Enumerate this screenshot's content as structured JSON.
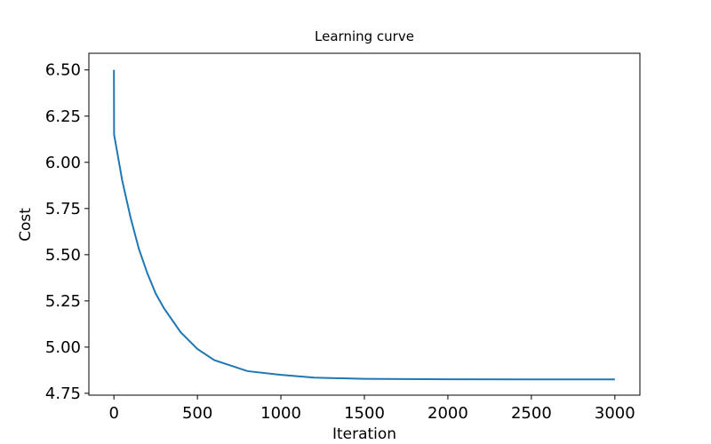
{
  "chart_data": {
    "type": "line",
    "title": "Learning curve",
    "x_label": "Iteration",
    "y_label": "Cost",
    "x": [
      0,
      1,
      50,
      100,
      150,
      200,
      250,
      300,
      400,
      500,
      600,
      700,
      800,
      1000,
      1200,
      1500,
      2000,
      2500,
      3000
    ],
    "series": [
      {
        "name": "Cost",
        "color": "#1f77b4",
        "values": [
          6.5,
          6.15,
          5.9,
          5.7,
          5.53,
          5.4,
          5.29,
          5.21,
          5.08,
          4.99,
          4.93,
          4.9,
          4.87,
          4.85,
          4.835,
          4.828,
          4.826,
          4.825,
          4.825
        ]
      }
    ],
    "xlim": [
      -150,
      3150
    ],
    "ylim": [
      4.74,
      6.59
    ],
    "xticks": [
      0,
      500,
      1000,
      1500,
      2000,
      2500,
      3000
    ],
    "yticks": [
      {
        "value": 4.75,
        "label": "4.75"
      },
      {
        "value": 5,
        "label": "5.00"
      },
      {
        "value": 5.25,
        "label": "5.25"
      },
      {
        "value": 5.5,
        "label": "5.50"
      },
      {
        "value": 5.75,
        "label": "5.75"
      },
      {
        "value": 6,
        "label": "6.00"
      },
      {
        "value": 6.25,
        "label": "6.25"
      },
      {
        "value": 6.5,
        "label": "6.50"
      }
    ]
  }
}
